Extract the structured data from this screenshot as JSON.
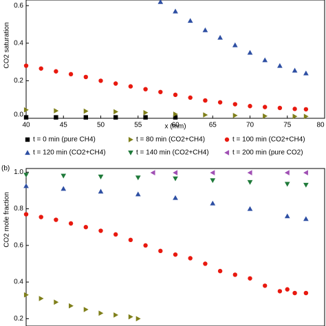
{
  "chart_data": [
    {
      "type": "scatter",
      "ylabel": "CO2 saturation",
      "xlabel": "x (mm)",
      "xlim": [
        40,
        80
      ],
      "xticks": [
        40,
        45,
        50,
        55,
        60,
        65,
        70,
        75,
        80
      ],
      "ylim": [
        0,
        0.63
      ],
      "yticks": [
        {
          "value": 0,
          "label": "0.0"
        },
        0.2,
        0.4,
        0.6
      ],
      "legend": "below",
      "series": [
        {
          "name": "t = 0 min (pure CH4)",
          "color": "#000000",
          "marker": "square",
          "x": [
            40,
            44,
            48,
            52,
            56,
            60
          ],
          "values": [
            0.005,
            0.005,
            0.005,
            0.005,
            0.005,
            0.005
          ]
        },
        {
          "name": "t = 80 min (CO2+CH4)",
          "color": "#7f7f1a",
          "marker": "triangle-right",
          "x": [
            40,
            44,
            48,
            52,
            56,
            60,
            64,
            68,
            72,
            76,
            77.5
          ],
          "values": [
            0.045,
            0.04,
            0.038,
            0.035,
            0.03,
            0.022,
            0.018,
            0.015,
            0.012,
            0.01,
            0.01
          ]
        },
        {
          "name": "t = 100 min (CO2+CH4)",
          "color": "#e8190f",
          "marker": "circle",
          "x": [
            40,
            42,
            44,
            46,
            48,
            50,
            52,
            54,
            56,
            58,
            60,
            62,
            64,
            66,
            68,
            70,
            72,
            74,
            76,
            77.5
          ],
          "values": [
            0.28,
            0.265,
            0.25,
            0.235,
            0.22,
            0.2,
            0.185,
            0.17,
            0.155,
            0.14,
            0.125,
            0.11,
            0.095,
            0.085,
            0.075,
            0.065,
            0.06,
            0.055,
            0.05,
            0.048
          ]
        },
        {
          "name": "t = 120 min (CO2+CH4)",
          "color": "#2e4fa3",
          "marker": "triangle-up",
          "x": [
            58,
            60,
            62,
            64,
            66,
            68,
            70,
            72,
            74,
            76,
            77.5
          ],
          "values": [
            0.62,
            0.57,
            0.52,
            0.47,
            0.43,
            0.39,
            0.35,
            0.31,
            0.28,
            0.255,
            0.24
          ]
        },
        {
          "name": "t = 140 min (CO2+CH4)",
          "color": "#1f7a3a",
          "marker": "triangle-down",
          "x": [],
          "values": []
        },
        {
          "name": "t = 200 min (pure CO2)",
          "color": "#a050b4",
          "marker": "triangle-left",
          "x": [],
          "values": []
        }
      ]
    },
    {
      "type": "scatter",
      "panel": "(b)",
      "ylabel": "CO2 mole fraction",
      "xlim": [
        40,
        80
      ],
      "ylim": [
        0.16,
        1.02
      ],
      "yticks": [
        0.2,
        0.4,
        0.6,
        0.8,
        {
          "value": 1,
          "label": "1.0"
        }
      ],
      "series": [
        {
          "color": "#7f7f1a",
          "marker": "triangle-right",
          "x": [
            40,
            42,
            44,
            46,
            48,
            50,
            52,
            54,
            55
          ],
          "values": [
            0.33,
            0.31,
            0.29,
            0.27,
            0.25,
            0.23,
            0.22,
            0.21,
            0.2
          ]
        },
        {
          "color": "#e8190f",
          "marker": "circle",
          "x": [
            40,
            42,
            44,
            46,
            48,
            50,
            52,
            54,
            56,
            58,
            60,
            62,
            64,
            66,
            68,
            70,
            72,
            74,
            75,
            76,
            77.5
          ],
          "values": [
            0.77,
            0.755,
            0.74,
            0.72,
            0.7,
            0.68,
            0.66,
            0.63,
            0.6,
            0.57,
            0.55,
            0.53,
            0.5,
            0.46,
            0.44,
            0.42,
            0.38,
            0.35,
            0.36,
            0.34,
            0.34
          ]
        },
        {
          "color": "#2e4fa3",
          "marker": "triangle-up",
          "x": [
            40,
            45,
            50,
            55,
            60,
            65,
            70,
            75,
            77.5
          ],
          "values": [
            0.925,
            0.91,
            0.895,
            0.88,
            0.86,
            0.83,
            0.8,
            0.76,
            0.745
          ]
        },
        {
          "color": "#1f7a3a",
          "marker": "triangle-down",
          "x": [
            40,
            45,
            50,
            55,
            60,
            65,
            70,
            75,
            77.5
          ],
          "values": [
            0.985,
            0.98,
            0.975,
            0.97,
            0.965,
            0.955,
            0.945,
            0.935,
            0.93
          ]
        },
        {
          "color": "#a050b4",
          "marker": "triangle-left",
          "x": [
            57,
            60,
            65,
            70,
            75,
            77.5
          ],
          "values": [
            0.997,
            0.997,
            0.997,
            0.997,
            0.997,
            0.997
          ]
        }
      ]
    }
  ]
}
